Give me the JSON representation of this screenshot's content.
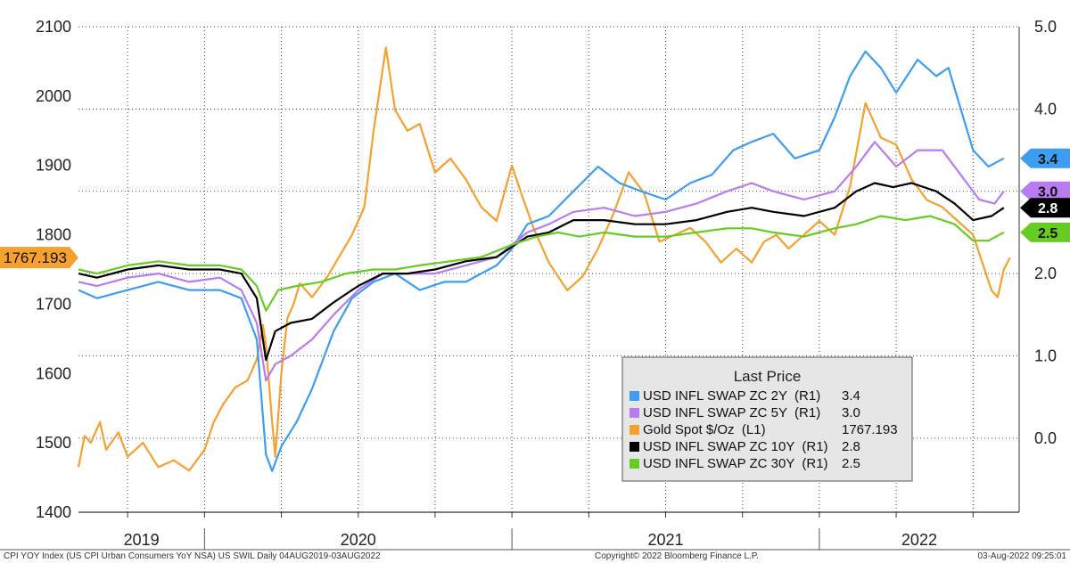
{
  "chart_data": {
    "type": "line",
    "left_axis": {
      "ticks": [
        "2100",
        "2000",
        "1900",
        "1800",
        "1700",
        "1600",
        "1500",
        "1400"
      ],
      "ylim": [
        1400,
        2100
      ]
    },
    "right_axis": {
      "ticks": [
        "5.0",
        "4.0",
        "3.0",
        "2.0",
        "1.0",
        "0.0"
      ],
      "ylim": [
        -0.9,
        5.0
      ]
    },
    "x_years": [
      "2019",
      "2020",
      "2021",
      "2022"
    ],
    "legend": {
      "title": "Last Price",
      "items": [
        {
          "label": "USD INFL SWAP ZC 2Y  (R1)",
          "value": "3.4",
          "color": "#3d9df0"
        },
        {
          "label": "USD INFL SWAP ZC 5Y  (R1)",
          "value": "3.0",
          "color": "#b97cf0"
        },
        {
          "label": "Gold Spot $/Oz  (L1)",
          "value": "1767.193",
          "color": "#f5a02f"
        },
        {
          "label": "USD INFL SWAP ZC 10Y  (R1)",
          "value": "2.8",
          "color": "#000000"
        },
        {
          "label": "USD INFL SWAP ZC 30Y  (R1)",
          "value": "2.5",
          "color": "#66cc22"
        }
      ]
    },
    "badges": {
      "left": {
        "text": "1767.193",
        "color": "#f5a02f",
        "value": 1767.193
      },
      "right": [
        {
          "text": "3.4",
          "color": "#3d9df0",
          "value": 3.4
        },
        {
          "text": "3.0",
          "color": "#b97cf0",
          "value": 3.0
        },
        {
          "text": "2.8",
          "color": "#000000",
          "value": 2.8
        },
        {
          "text": "2.5",
          "color": "#66cc22",
          "value": 2.5
        }
      ]
    },
    "series": [
      {
        "name": "Gold Spot $/Oz",
        "axis": "left",
        "color": "#f5a02f",
        "points": [
          [
            2019.59,
            1465
          ],
          [
            2019.61,
            1510
          ],
          [
            2019.63,
            1500
          ],
          [
            2019.66,
            1530
          ],
          [
            2019.68,
            1490
          ],
          [
            2019.72,
            1515
          ],
          [
            2019.75,
            1480
          ],
          [
            2019.8,
            1500
          ],
          [
            2019.85,
            1465
          ],
          [
            2019.9,
            1475
          ],
          [
            2019.95,
            1460
          ],
          [
            2020.0,
            1490
          ],
          [
            2020.03,
            1530
          ],
          [
            2020.06,
            1555
          ],
          [
            2020.1,
            1580
          ],
          [
            2020.14,
            1590
          ],
          [
            2020.17,
            1620
          ],
          [
            2020.19,
            1670
          ],
          [
            2020.2,
            1640
          ],
          [
            2020.22,
            1530
          ],
          [
            2020.23,
            1480
          ],
          [
            2020.25,
            1600
          ],
          [
            2020.27,
            1680
          ],
          [
            2020.29,
            1700
          ],
          [
            2020.31,
            1730
          ],
          [
            2020.35,
            1710
          ],
          [
            2020.4,
            1740
          ],
          [
            2020.44,
            1770
          ],
          [
            2020.48,
            1800
          ],
          [
            2020.52,
            1840
          ],
          [
            2020.55,
            1950
          ],
          [
            2020.59,
            2070
          ],
          [
            2020.62,
            1980
          ],
          [
            2020.66,
            1950
          ],
          [
            2020.7,
            1960
          ],
          [
            2020.75,
            1890
          ],
          [
            2020.8,
            1910
          ],
          [
            2020.85,
            1880
          ],
          [
            2020.9,
            1840
          ],
          [
            2020.95,
            1820
          ],
          [
            2021.0,
            1900
          ],
          [
            2021.03,
            1860
          ],
          [
            2021.07,
            1810
          ],
          [
            2021.12,
            1760
          ],
          [
            2021.18,
            1720
          ],
          [
            2021.23,
            1740
          ],
          [
            2021.28,
            1780
          ],
          [
            2021.33,
            1830
          ],
          [
            2021.38,
            1890
          ],
          [
            2021.43,
            1860
          ],
          [
            2021.48,
            1790
          ],
          [
            2021.53,
            1800
          ],
          [
            2021.58,
            1810
          ],
          [
            2021.63,
            1790
          ],
          [
            2021.68,
            1760
          ],
          [
            2021.73,
            1780
          ],
          [
            2021.78,
            1760
          ],
          [
            2021.82,
            1790
          ],
          [
            2021.86,
            1800
          ],
          [
            2021.9,
            1780
          ],
          [
            2021.95,
            1800
          ],
          [
            2022.0,
            1820
          ],
          [
            2022.05,
            1800
          ],
          [
            2022.1,
            1870
          ],
          [
            2022.15,
            1990
          ],
          [
            2022.2,
            1940
          ],
          [
            2022.25,
            1930
          ],
          [
            2022.3,
            1880
          ],
          [
            2022.35,
            1850
          ],
          [
            2022.4,
            1840
          ],
          [
            2022.45,
            1820
          ],
          [
            2022.5,
            1800
          ],
          [
            2022.53,
            1760
          ],
          [
            2022.56,
            1720
          ],
          [
            2022.58,
            1710
          ],
          [
            2022.6,
            1750
          ],
          [
            2022.62,
            1767
          ]
        ]
      },
      {
        "name": "USD INFL SWAP ZC 2Y",
        "axis": "right",
        "color": "#3d9df0",
        "points": [
          [
            2019.59,
            1.8
          ],
          [
            2019.65,
            1.7
          ],
          [
            2019.75,
            1.8
          ],
          [
            2019.85,
            1.9
          ],
          [
            2019.95,
            1.8
          ],
          [
            2020.05,
            1.8
          ],
          [
            2020.12,
            1.7
          ],
          [
            2020.17,
            1.2
          ],
          [
            2020.2,
            -0.2
          ],
          [
            2020.22,
            -0.4
          ],
          [
            2020.25,
            -0.1
          ],
          [
            2020.3,
            0.2
          ],
          [
            2020.35,
            0.6
          ],
          [
            2020.42,
            1.3
          ],
          [
            2020.48,
            1.7
          ],
          [
            2020.55,
            1.9
          ],
          [
            2020.62,
            2.0
          ],
          [
            2020.7,
            1.8
          ],
          [
            2020.78,
            1.9
          ],
          [
            2020.85,
            1.9
          ],
          [
            2020.95,
            2.1
          ],
          [
            2021.0,
            2.3
          ],
          [
            2021.05,
            2.6
          ],
          [
            2021.12,
            2.7
          ],
          [
            2021.2,
            3.0
          ],
          [
            2021.28,
            3.3
          ],
          [
            2021.35,
            3.1
          ],
          [
            2021.42,
            3.0
          ],
          [
            2021.5,
            2.9
          ],
          [
            2021.58,
            3.1
          ],
          [
            2021.65,
            3.2
          ],
          [
            2021.72,
            3.5
          ],
          [
            2021.78,
            3.6
          ],
          [
            2021.85,
            3.7
          ],
          [
            2021.92,
            3.4
          ],
          [
            2022.0,
            3.5
          ],
          [
            2022.05,
            3.9
          ],
          [
            2022.1,
            4.4
          ],
          [
            2022.15,
            4.7
          ],
          [
            2022.2,
            4.5
          ],
          [
            2022.25,
            4.2
          ],
          [
            2022.32,
            4.6
          ],
          [
            2022.38,
            4.4
          ],
          [
            2022.42,
            4.5
          ],
          [
            2022.46,
            4.0
          ],
          [
            2022.5,
            3.5
          ],
          [
            2022.55,
            3.3
          ],
          [
            2022.6,
            3.4
          ]
        ]
      },
      {
        "name": "USD INFL SWAP ZC 5Y",
        "axis": "right",
        "color": "#b97cf0",
        "points": [
          [
            2019.59,
            1.9
          ],
          [
            2019.65,
            1.85
          ],
          [
            2019.75,
            1.95
          ],
          [
            2019.85,
            2.0
          ],
          [
            2019.95,
            1.9
          ],
          [
            2020.05,
            1.95
          ],
          [
            2020.12,
            1.8
          ],
          [
            2020.17,
            1.4
          ],
          [
            2020.2,
            0.7
          ],
          [
            2020.23,
            0.9
          ],
          [
            2020.28,
            1.0
          ],
          [
            2020.35,
            1.2
          ],
          [
            2020.42,
            1.5
          ],
          [
            2020.5,
            1.8
          ],
          [
            2020.58,
            2.0
          ],
          [
            2020.66,
            2.0
          ],
          [
            2020.75,
            2.0
          ],
          [
            2020.85,
            2.1
          ],
          [
            2020.95,
            2.2
          ],
          [
            2021.05,
            2.5
          ],
          [
            2021.12,
            2.6
          ],
          [
            2021.2,
            2.75
          ],
          [
            2021.3,
            2.8
          ],
          [
            2021.4,
            2.7
          ],
          [
            2021.5,
            2.75
          ],
          [
            2021.6,
            2.85
          ],
          [
            2021.7,
            3.0
          ],
          [
            2021.78,
            3.1
          ],
          [
            2021.85,
            3.0
          ],
          [
            2021.95,
            2.9
          ],
          [
            2022.05,
            3.0
          ],
          [
            2022.12,
            3.3
          ],
          [
            2022.18,
            3.6
          ],
          [
            2022.25,
            3.3
          ],
          [
            2022.32,
            3.5
          ],
          [
            2022.4,
            3.5
          ],
          [
            2022.46,
            3.2
          ],
          [
            2022.52,
            2.9
          ],
          [
            2022.57,
            2.85
          ],
          [
            2022.6,
            3.0
          ]
        ]
      },
      {
        "name": "USD INFL SWAP ZC 10Y",
        "axis": "right",
        "color": "#000000",
        "points": [
          [
            2019.59,
            2.0
          ],
          [
            2019.65,
            1.95
          ],
          [
            2019.75,
            2.05
          ],
          [
            2019.85,
            2.1
          ],
          [
            2019.95,
            2.05
          ],
          [
            2020.05,
            2.05
          ],
          [
            2020.12,
            2.0
          ],
          [
            2020.17,
            1.7
          ],
          [
            2020.2,
            0.95
          ],
          [
            2020.23,
            1.3
          ],
          [
            2020.28,
            1.4
          ],
          [
            2020.35,
            1.45
          ],
          [
            2020.42,
            1.65
          ],
          [
            2020.5,
            1.85
          ],
          [
            2020.58,
            2.0
          ],
          [
            2020.66,
            2.0
          ],
          [
            2020.75,
            2.05
          ],
          [
            2020.85,
            2.15
          ],
          [
            2020.95,
            2.2
          ],
          [
            2021.05,
            2.45
          ],
          [
            2021.12,
            2.5
          ],
          [
            2021.2,
            2.65
          ],
          [
            2021.3,
            2.65
          ],
          [
            2021.4,
            2.6
          ],
          [
            2021.5,
            2.6
          ],
          [
            2021.6,
            2.65
          ],
          [
            2021.7,
            2.75
          ],
          [
            2021.78,
            2.8
          ],
          [
            2021.85,
            2.75
          ],
          [
            2021.95,
            2.7
          ],
          [
            2022.05,
            2.8
          ],
          [
            2022.12,
            3.0
          ],
          [
            2022.18,
            3.1
          ],
          [
            2022.24,
            3.05
          ],
          [
            2022.3,
            3.1
          ],
          [
            2022.38,
            3.0
          ],
          [
            2022.44,
            2.85
          ],
          [
            2022.5,
            2.65
          ],
          [
            2022.56,
            2.7
          ],
          [
            2022.6,
            2.8
          ]
        ]
      },
      {
        "name": "USD INFL SWAP ZC 30Y",
        "axis": "right",
        "color": "#66cc22",
        "points": [
          [
            2019.59,
            2.05
          ],
          [
            2019.65,
            2.0
          ],
          [
            2019.75,
            2.1
          ],
          [
            2019.85,
            2.15
          ],
          [
            2019.95,
            2.1
          ],
          [
            2020.05,
            2.1
          ],
          [
            2020.12,
            2.05
          ],
          [
            2020.17,
            1.85
          ],
          [
            2020.2,
            1.55
          ],
          [
            2020.24,
            1.8
          ],
          [
            2020.3,
            1.85
          ],
          [
            2020.38,
            1.9
          ],
          [
            2020.46,
            2.0
          ],
          [
            2020.55,
            2.05
          ],
          [
            2020.62,
            2.05
          ],
          [
            2020.7,
            2.1
          ],
          [
            2020.8,
            2.15
          ],
          [
            2020.9,
            2.2
          ],
          [
            2021.0,
            2.35
          ],
          [
            2021.08,
            2.45
          ],
          [
            2021.15,
            2.5
          ],
          [
            2021.22,
            2.45
          ],
          [
            2021.3,
            2.5
          ],
          [
            2021.4,
            2.45
          ],
          [
            2021.5,
            2.45
          ],
          [
            2021.6,
            2.5
          ],
          [
            2021.7,
            2.55
          ],
          [
            2021.78,
            2.55
          ],
          [
            2021.85,
            2.5
          ],
          [
            2021.95,
            2.45
          ],
          [
            2022.05,
            2.55
          ],
          [
            2022.12,
            2.6
          ],
          [
            2022.2,
            2.7
          ],
          [
            2022.28,
            2.65
          ],
          [
            2022.36,
            2.7
          ],
          [
            2022.44,
            2.6
          ],
          [
            2022.5,
            2.4
          ],
          [
            2022.55,
            2.4
          ],
          [
            2022.6,
            2.5
          ]
        ]
      }
    ]
  },
  "footer": {
    "left": "CPI YOY Index (US CPI Urban Consumers YoY NSA) US SWIL  Daily 04AUG2019-03AUG2022",
    "center": "Copyright© 2022 Bloomberg Finance L.P.",
    "right": "03-Aug-2022 09:25:01"
  }
}
